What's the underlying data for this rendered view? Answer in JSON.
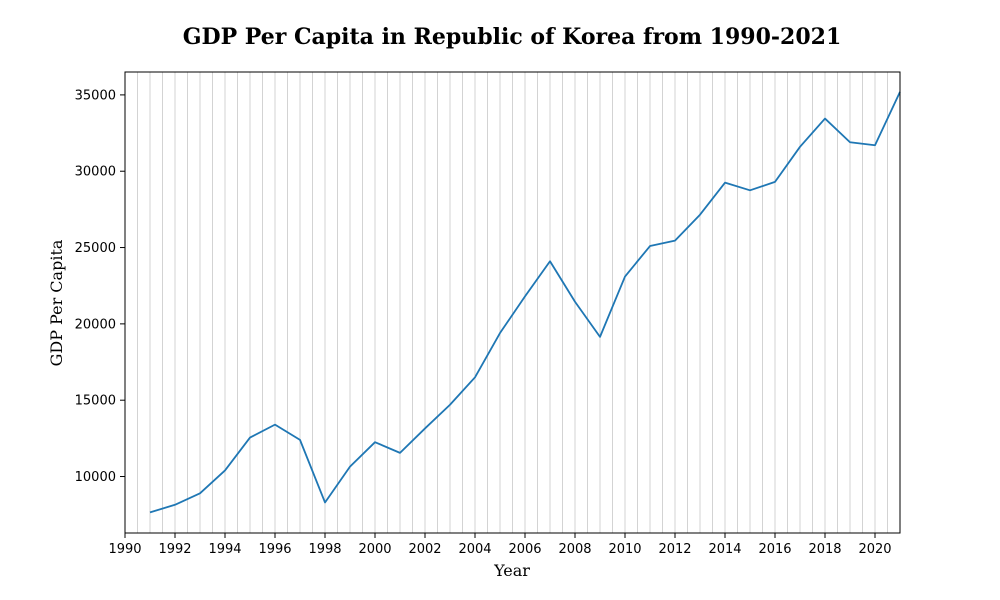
{
  "chart_data": {
    "type": "line",
    "title": "GDP Per Capita in Republic of Korea from 1990-2021",
    "xlabel": "Year",
    "ylabel": "GDP Per Capita",
    "xlim": [
      1990,
      2021
    ],
    "ylim": [
      6300,
      36500
    ],
    "x_ticks": [
      1990,
      1992,
      1994,
      1996,
      1998,
      2000,
      2002,
      2004,
      2006,
      2008,
      2010,
      2012,
      2014,
      2016,
      2018,
      2020
    ],
    "y_ticks": [
      10000,
      15000,
      20000,
      25000,
      30000,
      35000
    ],
    "vertical_grid_step_years": 0.5,
    "horizontal_grid": false,
    "series": [
      {
        "color": "#1f77b4",
        "x": [
          1991,
          1992,
          1993,
          1994,
          1995,
          1996,
          1997,
          1998,
          1999,
          2000,
          2001,
          2002,
          2003,
          2004,
          2005,
          2006,
          2007,
          2008,
          2009,
          2010,
          2011,
          2012,
          2013,
          2014,
          2015,
          2016,
          2017,
          2018,
          2019,
          2020,
          2021
        ],
        "y": [
          7650,
          8150,
          8900,
          10400,
          12550,
          13400,
          12400,
          8300,
          10650,
          12250,
          11550,
          13150,
          14700,
          16500,
          19400,
          21800,
          24100,
          21450,
          19150,
          23100,
          25100,
          25450,
          27150,
          29250,
          28750,
          29300,
          31600,
          33450,
          31900,
          31700,
          35200
        ]
      }
    ]
  }
}
